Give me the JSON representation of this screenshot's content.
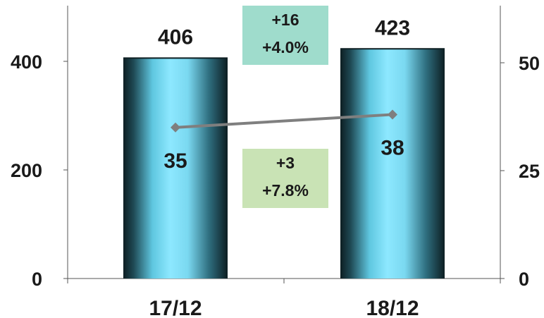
{
  "chart_data": {
    "type": "bar",
    "categories": [
      "17/12",
      "18/12"
    ],
    "series": [
      {
        "type": "bar",
        "axis": "left",
        "values": [
          406,
          423
        ],
        "labels": [
          "406",
          "423"
        ]
      },
      {
        "type": "line",
        "axis": "right",
        "values": [
          35,
          38
        ],
        "labels": [
          "35",
          "38"
        ]
      }
    ],
    "left_axis": {
      "ylim": [
        0,
        500
      ],
      "ticks": [
        0,
        200,
        400
      ],
      "tick_labels": [
        "0",
        "200",
        "400"
      ]
    },
    "right_axis": {
      "ylim": [
        0,
        62.5
      ],
      "ticks": [
        0,
        25,
        50
      ],
      "tick_labels": [
        "0",
        "25",
        "50"
      ]
    },
    "annotations": [
      {
        "series": 0,
        "line1": "+16",
        "line2": "+4.0%",
        "color": "#9fdccc"
      },
      {
        "series": 1,
        "line1": "+3",
        "line2": "+7.8%",
        "color": "#c9e3b5"
      }
    ],
    "colors": {
      "bar_center": "#8de8ff",
      "bar_edge": "#0d1e22",
      "line": "#7f7f7f",
      "axis": "#555555"
    },
    "grid": false
  }
}
